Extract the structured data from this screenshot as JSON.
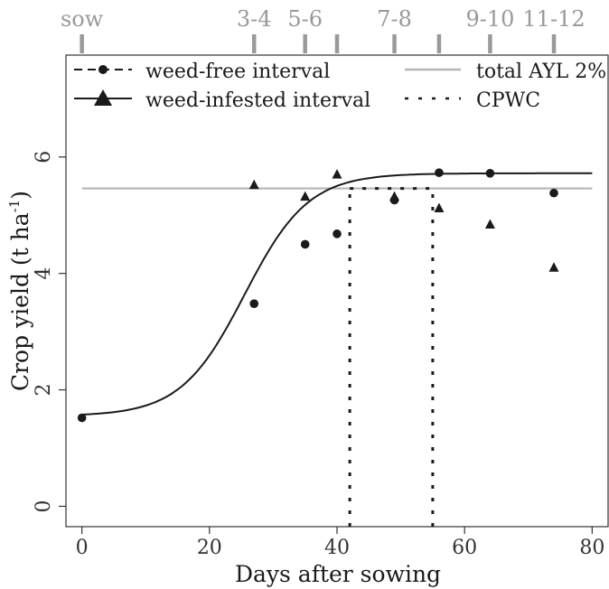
{
  "chart_data": {
    "type": "scatter",
    "xlabel": "Days after sowing",
    "ylabel": "Crop yield (t ha",
    "ylabel_superscript": "-1",
    "ylabel_close": ")",
    "xlim": [
      -2.5,
      82.5
    ],
    "ylim": [
      -0.35,
      7.75
    ],
    "x_ticks": [
      0,
      20,
      40,
      60,
      80
    ],
    "x_tick_labels": [
      "0",
      "20",
      "40",
      "60",
      "80"
    ],
    "y_ticks": [
      0,
      2,
      4,
      6
    ],
    "y_tick_labels": [
      "0",
      "2",
      "4",
      "6"
    ],
    "grid": false,
    "legend_position": "top",
    "stages": {
      "positions": [
        0,
        27,
        35,
        40,
        49,
        56,
        64,
        74
      ],
      "labels": [
        {
          "text": "sow",
          "x": 0
        },
        {
          "text": "3-4",
          "x": 27
        },
        {
          "text": "5-6",
          "x": 35
        },
        {
          "text": "7-8",
          "x": 49
        },
        {
          "text": "9-10",
          "x": 64
        },
        {
          "text": "11-12",
          "x": 74
        }
      ],
      "color": "#999999"
    },
    "series": [
      {
        "name": "weed-free interval",
        "marker": "circle",
        "points": [
          [
            0,
            1.52
          ],
          [
            27,
            3.48
          ],
          [
            35,
            4.5
          ],
          [
            40,
            4.68
          ],
          [
            49,
            5.26
          ],
          [
            56,
            5.73
          ],
          [
            64,
            5.72
          ],
          [
            74,
            5.38
          ]
        ]
      },
      {
        "name": "weed-infested interval",
        "marker": "triangle",
        "points": [
          [
            27,
            5.52
          ],
          [
            35,
            5.32
          ],
          [
            40,
            5.7
          ],
          [
            49,
            5.32
          ],
          [
            56,
            5.12
          ],
          [
            64,
            4.84
          ],
          [
            74,
            4.1
          ]
        ]
      }
    ],
    "fitted_curve": {
      "model": "logistic",
      "lower": 1.55,
      "upper": 5.72,
      "midpoint": 25.5,
      "rate": 0.2,
      "x_range": [
        0,
        80
      ]
    },
    "reference_lines": {
      "total_ayl": {
        "name": "total AYL 2%",
        "y": 5.46,
        "x_range": [
          0,
          80
        ],
        "color": "#b5b5b5"
      },
      "cpwc": {
        "name": "CPWC",
        "start": 42,
        "end": 55,
        "y_top": 5.46
      }
    },
    "colors": {
      "series": "#1a1a1a",
      "axis": "#333333",
      "ayl": "#b5b5b5",
      "stage": "#999999"
    }
  }
}
